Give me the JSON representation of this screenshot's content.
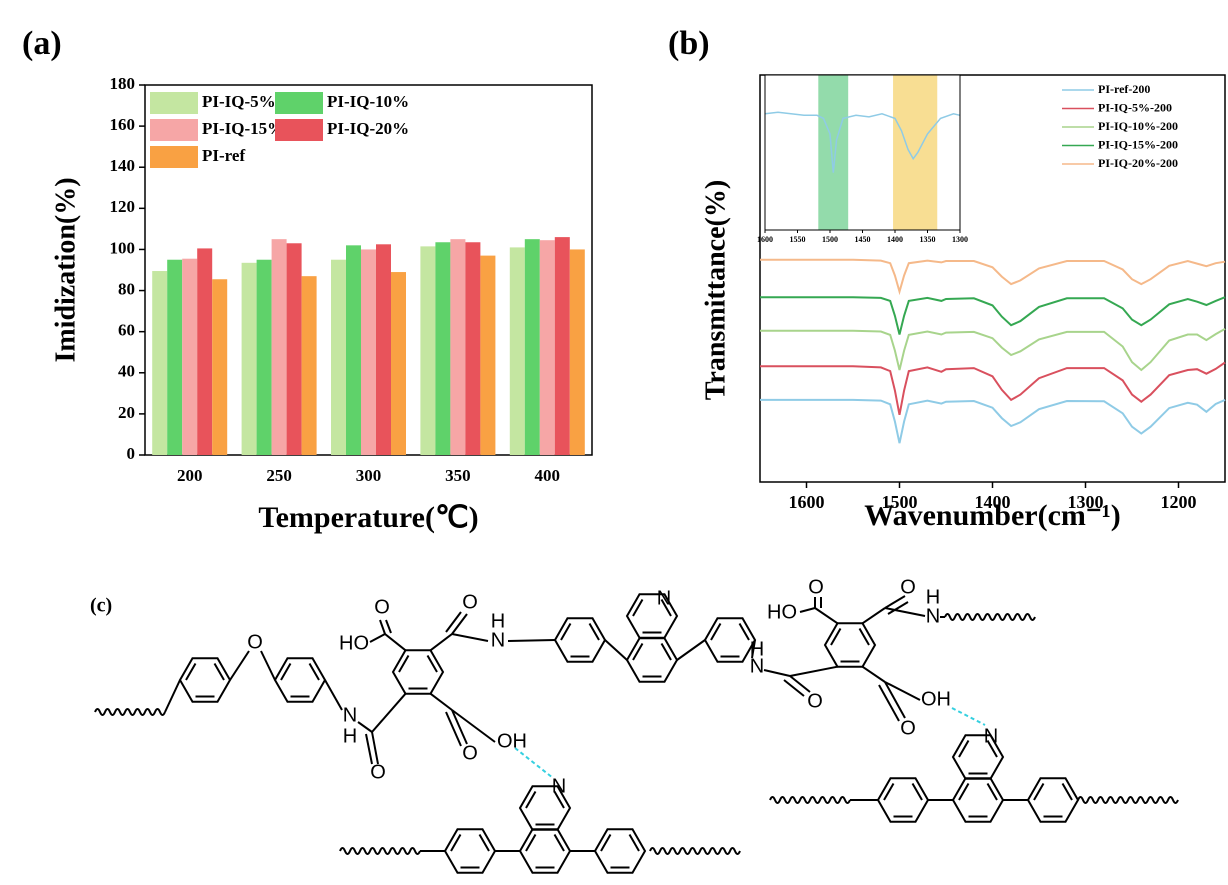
{
  "chart_data": [
    {
      "type": "bar",
      "panel": "(a)",
      "x_label": "Temperature(℃)",
      "y_label": "Imidization(%)",
      "categories": [
        "200",
        "250",
        "300",
        "350",
        "400"
      ],
      "series": [
        {
          "name": "PI-IQ-5%",
          "color": "#c4e6a1",
          "values": [
            89.5,
            93.5,
            95,
            101.5,
            101
          ]
        },
        {
          "name": "PI-IQ-10%",
          "color": "#5fd26a",
          "values": [
            95,
            95,
            102,
            103.5,
            105
          ]
        },
        {
          "name": "PI-IQ-15%",
          "color": "#f6a6a6",
          "values": [
            95.5,
            105,
            100,
            105,
            104.5
          ]
        },
        {
          "name": "PI-IQ-20%",
          "color": "#e8535b",
          "values": [
            100.5,
            103,
            102.5,
            103.5,
            106
          ]
        },
        {
          "name": "PI-ref",
          "color": "#f9a143",
          "values": [
            85.5,
            87,
            89,
            97,
            100
          ]
        }
      ],
      "ylim": [
        0,
        180
      ],
      "yticks": [
        0,
        20,
        40,
        60,
        80,
        100,
        120,
        140,
        160,
        180
      ],
      "grid": false,
      "legend": "top-left"
    },
    {
      "type": "line",
      "panel": "(b)",
      "x_label": "Wavenumber(cm⁻¹)",
      "y_label": "Transmittance(%)",
      "x": [
        1650,
        1600,
        1550,
        1520,
        1510,
        1505,
        1500,
        1495,
        1490,
        1470,
        1455,
        1450,
        1420,
        1400,
        1390,
        1380,
        1370,
        1350,
        1320,
        1280,
        1260,
        1250,
        1240,
        1230,
        1210,
        1190,
        1180,
        1170,
        1160,
        1150
      ],
      "series": [
        {
          "name": "PI-ref-200",
          "color": "#8fcbe6",
          "values": [
            15,
            15,
            15,
            14.8,
            13.8,
            9.2,
            3.4,
            9.2,
            13.8,
            14.8,
            14,
            14.5,
            14.7,
            12.9,
            10.1,
            8,
            9,
            12.5,
            14.7,
            14.6,
            11.4,
            7.8,
            6,
            7.8,
            12.8,
            14.2,
            13.7,
            11.8,
            13.9,
            15
          ]
        },
        {
          "name": "PI-IQ-5%-200",
          "color": "#d9505e",
          "values": [
            24,
            24,
            24,
            23.7,
            22.7,
            17.5,
            11,
            17.5,
            22.7,
            23.7,
            22.5,
            23.2,
            23.5,
            21.3,
            17.7,
            15,
            16.4,
            20.8,
            23.5,
            23.5,
            20.2,
            16.4,
            14.5,
            16.4,
            21.6,
            23,
            23.2,
            22,
            23.3,
            25
          ]
        },
        {
          "name": "PI-IQ-10%-200",
          "color": "#a8d48c",
          "values": [
            33.5,
            33.5,
            33.5,
            33.3,
            32.4,
            28.2,
            23,
            28.2,
            32.4,
            33.3,
            32.5,
            33,
            33.2,
            31.5,
            29,
            27,
            28,
            31.2,
            33.2,
            33.2,
            29.3,
            25.1,
            23,
            25.1,
            30.9,
            32.5,
            32.5,
            31,
            32.6,
            34
          ]
        },
        {
          "name": "PI-IQ-15%-200",
          "color": "#35a852",
          "values": [
            42.5,
            42.5,
            42.5,
            42.3,
            41.5,
            37.5,
            32.5,
            37.5,
            41.5,
            42.3,
            41.5,
            42,
            42.2,
            40.3,
            37.3,
            35,
            36.1,
            39.9,
            42.2,
            42.2,
            39.5,
            36.5,
            35,
            36.5,
            40.6,
            42,
            41.3,
            40.4,
            41.5,
            42.5
          ]
        },
        {
          "name": "PI-IQ-20%-200",
          "color": "#f5b98a",
          "values": [
            52.5,
            52.5,
            52.5,
            52.3,
            51.6,
            48.3,
            44,
            48.3,
            51.6,
            52.3,
            51.8,
            52.2,
            52.2,
            50.5,
            48,
            46,
            47,
            50.2,
            52.2,
            52.2,
            49.9,
            47.3,
            46,
            47.3,
            50.9,
            52.2,
            51.5,
            50.8,
            51.6,
            52
          ]
        }
      ],
      "xlim": [
        1650,
        1150
      ],
      "xticks": [
        1600,
        1500,
        1400,
        1300,
        1200
      ],
      "ylim": [
        -7,
        102
      ],
      "legend": "top-right",
      "inset": {
        "type": "line",
        "x": [
          1600,
          1580,
          1560,
          1540,
          1520,
          1510,
          1500,
          1495,
          1490,
          1480,
          1460,
          1440,
          1420,
          1400,
          1390,
          1380,
          1372,
          1365,
          1350,
          1330,
          1310,
          1300
        ],
        "values": [
          75,
          76,
          75,
          74,
          74,
          72,
          62,
          37,
          58,
          72,
          74,
          73,
          75,
          72,
          64,
          52,
          46,
          50,
          62,
          72,
          75,
          74
        ],
        "color": "#8fcbe6",
        "xlim": [
          1600,
          1300
        ],
        "xticks": [
          1600,
          1550,
          1500,
          1450,
          1400,
          1350,
          1300
        ],
        "ylim": [
          0,
          100
        ],
        "bands": [
          {
            "range": [
              1518,
              1472
            ],
            "color": "#93dbab"
          },
          {
            "range": [
              1403,
              1335
            ],
            "color": "#f8de93"
          }
        ]
      }
    }
  ],
  "structure": {
    "panel": "(c)",
    "labels": [
      "O",
      "N",
      "H",
      "O",
      "HO",
      "O",
      "N",
      "H",
      "O",
      "O",
      "OH",
      "N",
      "H",
      "N",
      "O",
      "HO",
      "O",
      "O",
      "N",
      "H",
      "OH",
      "O",
      "N",
      "N"
    ]
  }
}
